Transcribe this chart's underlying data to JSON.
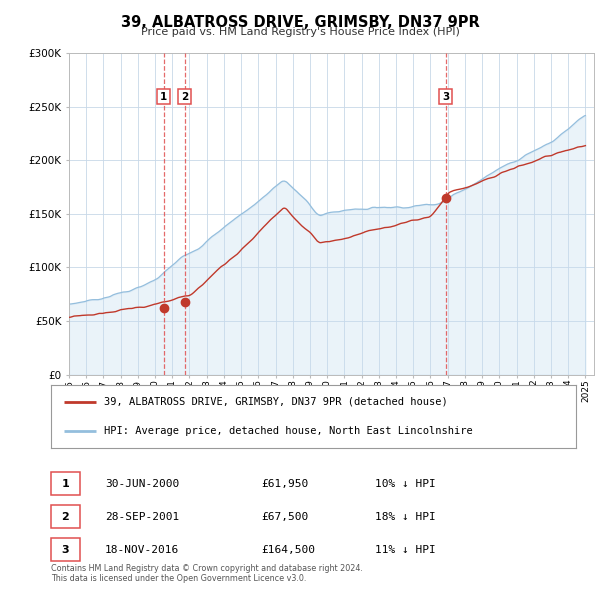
{
  "title": "39, ALBATROSS DRIVE, GRIMSBY, DN37 9PR",
  "subtitle": "Price paid vs. HM Land Registry's House Price Index (HPI)",
  "ylim": [
    0,
    300000
  ],
  "yticks": [
    0,
    50000,
    100000,
    150000,
    200000,
    250000,
    300000
  ],
  "ytick_labels": [
    "£0",
    "£50K",
    "£100K",
    "£150K",
    "£200K",
    "£250K",
    "£300K"
  ],
  "xtick_years": [
    "1995",
    "1996",
    "1997",
    "1998",
    "1999",
    "2000",
    "2001",
    "2002",
    "2003",
    "2004",
    "2005",
    "2006",
    "2007",
    "2008",
    "2009",
    "2010",
    "2011",
    "2012",
    "2013",
    "2014",
    "2015",
    "2016",
    "2017",
    "2018",
    "2019",
    "2020",
    "2021",
    "2022",
    "2023",
    "2024",
    "2025"
  ],
  "hpi_color": "#94bedd",
  "hpi_fill_color": "#c5ddf0",
  "price_color": "#c0392b",
  "sale_marker_color": "#c0392b",
  "vline_color": "#e05050",
  "background_color": "#ffffff",
  "plot_bg_color": "#ffffff",
  "grid_color": "#c8d8e8",
  "sales": [
    {
      "date": 2000.5,
      "price": 61950,
      "label": "1"
    },
    {
      "date": 2001.73,
      "price": 67500,
      "label": "2"
    },
    {
      "date": 2016.88,
      "price": 164500,
      "label": "3"
    }
  ],
  "table_rows": [
    {
      "num": "1",
      "date": "30-JUN-2000",
      "price": "£61,950",
      "pct": "10% ↓ HPI"
    },
    {
      "num": "2",
      "date": "28-SEP-2001",
      "price": "£67,500",
      "pct": "18% ↓ HPI"
    },
    {
      "num": "3",
      "date": "18-NOV-2016",
      "price": "£164,500",
      "pct": "11% ↓ HPI"
    }
  ],
  "footnote": "Contains HM Land Registry data © Crown copyright and database right 2024.\nThis data is licensed under the Open Government Licence v3.0.",
  "legend_label_price": "39, ALBATROSS DRIVE, GRIMSBY, DN37 9PR (detached house)",
  "legend_label_hpi": "HPI: Average price, detached house, North East Lincolnshire"
}
